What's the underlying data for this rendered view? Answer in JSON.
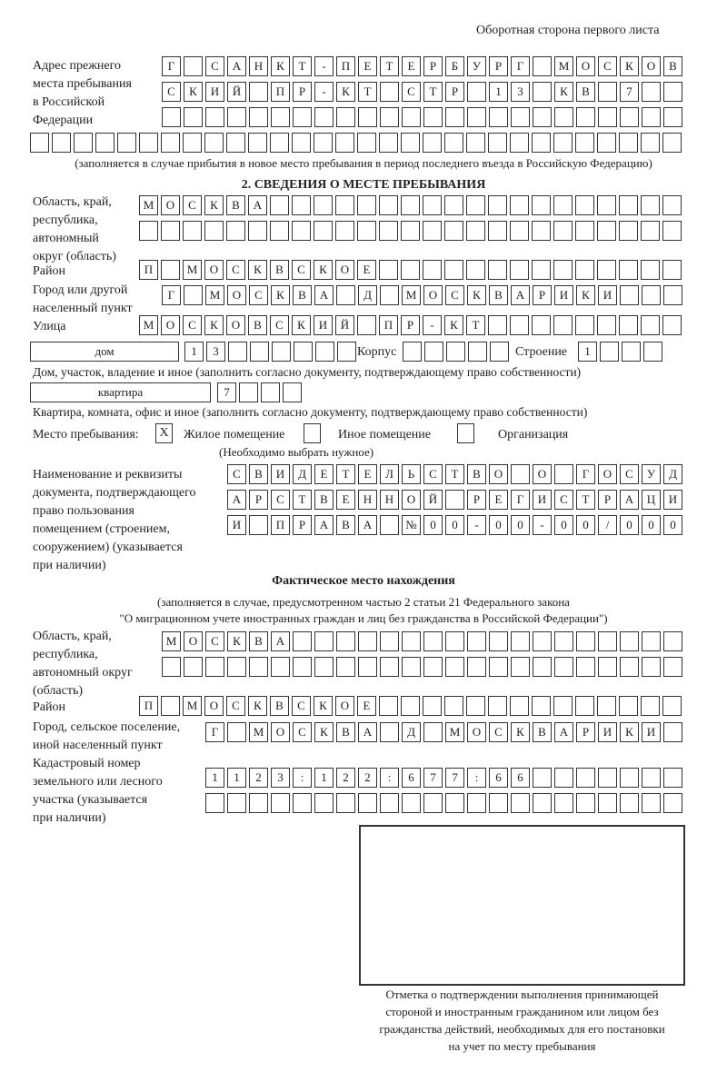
{
  "header": {
    "side_label": "Оборотная сторона первого листа"
  },
  "previous_address": {
    "label": [
      "Адрес прежнего",
      "места пребывания",
      "в Российской",
      "Федерации"
    ],
    "rows": [
      [
        "Г",
        "",
        "С",
        "А",
        "Н",
        "К",
        "Т",
        "-",
        "П",
        "Е",
        "Т",
        "Е",
        "Р",
        "Б",
        "У",
        "Р",
        "Г",
        "",
        "М",
        "О",
        "С",
        "К",
        "О",
        "В"
      ],
      [
        "С",
        "К",
        "И",
        "Й",
        "",
        "П",
        "Р",
        "-",
        "К",
        "Т",
        "",
        "С",
        "Т",
        "Р",
        "",
        "1",
        "3",
        "",
        "К",
        "В",
        "",
        "7",
        "",
        ""
      ],
      [
        "",
        "",
        "",
        "",
        "",
        "",
        "",
        "",
        "",
        "",
        "",
        "",
        "",
        "",
        "",
        "",
        "",
        "",
        "",
        "",
        "",
        "",
        "",
        ""
      ],
      [
        "",
        "",
        "",
        "",
        "",
        "",
        "",
        "",
        "",
        "",
        "",
        "",
        "",
        "",
        "",
        "",
        "",
        "",
        "",
        "",
        "",
        "",
        "",
        "",
        "",
        "",
        "",
        "",
        "",
        ""
      ]
    ],
    "note": "(заполняется в случае прибытия в новое место пребывания в период последнего въезда в Российскую Федерацию)"
  },
  "section2": {
    "title": "2. СВЕДЕНИЯ О МЕСТЕ ПРЕБЫВАНИЯ",
    "region_label": [
      "Область, край,",
      "республика,",
      "автономный",
      "округ (область)"
    ],
    "region_rows": [
      [
        "М",
        "О",
        "С",
        "К",
        "В",
        "А",
        "",
        "",
        "",
        "",
        "",
        "",
        "",
        "",
        "",
        "",
        "",
        "",
        "",
        "",
        "",
        "",
        "",
        "",
        ""
      ],
      [
        "",
        "",
        "",
        "",
        "",
        "",
        "",
        "",
        "",
        "",
        "",
        "",
        "",
        "",
        "",
        "",
        "",
        "",
        "",
        "",
        "",
        "",
        "",
        "",
        ""
      ]
    ],
    "district_label": "Район",
    "district_row": [
      "П",
      "",
      "М",
      "О",
      "С",
      "К",
      "В",
      "С",
      "К",
      "О",
      "Е",
      "",
      "",
      "",
      "",
      "",
      "",
      "",
      "",
      "",
      "",
      "",
      "",
      "",
      ""
    ],
    "city_label": [
      "Город или другой",
      "населенный пункт"
    ],
    "city_row": [
      "Г",
      "",
      "М",
      "О",
      "С",
      "К",
      "В",
      "А",
      "",
      "Д",
      "",
      "М",
      "О",
      "С",
      "К",
      "В",
      "А",
      "Р",
      "И",
      "К",
      "И",
      "",
      "",
      ""
    ],
    "street_label": "Улица",
    "street_row": [
      "М",
      "О",
      "С",
      "К",
      "О",
      "В",
      "С",
      "К",
      "И",
      "Й",
      "",
      "П",
      "Р",
      "-",
      "К",
      "Т",
      "",
      "",
      "",
      "",
      "",
      "",
      "",
      "",
      ""
    ],
    "house_type": "дом",
    "house_row": [
      "1",
      "3",
      "",
      "",
      "",
      "",
      "",
      ""
    ],
    "building_label": "Корпус",
    "building_row": [
      "",
      "",
      "",
      "",
      ""
    ],
    "structure_label": "Строение",
    "structure_row": [
      "1",
      "",
      "",
      ""
    ],
    "house_note": "Дом, участок, владение и иное (заполнить согласно документу, подтверждающему право собственности)",
    "flat_type": "квартира",
    "flat_row": [
      "7",
      "",
      "",
      ""
    ],
    "flat_note": "Квартира, комната, офис и иное (заполнить согласно документу, подтверждающему право собственности)",
    "stay_place_label": "Место пребывания:",
    "stay_options": [
      {
        "mark": "X",
        "label": "Жилое помещение"
      },
      {
        "mark": "",
        "label": "Иное помещение"
      },
      {
        "mark": "",
        "label": "Организация"
      }
    ],
    "stay_note": "(Необходимо выбрать нужное)",
    "document_label": [
      "Наименование и реквизиты",
      "документа, подтверждающего",
      "право пользования",
      "помещением (строением,",
      "сооружением) (указывается",
      "при наличии)"
    ],
    "document_rows": [
      [
        "С",
        "В",
        "И",
        "Д",
        "Е",
        "Т",
        "Е",
        "Л",
        "Ь",
        "С",
        "Т",
        "В",
        "О",
        "",
        "О",
        "",
        "Г",
        "О",
        "С",
        "У",
        "Д"
      ],
      [
        "А",
        "Р",
        "С",
        "Т",
        "В",
        "Е",
        "Н",
        "Н",
        "О",
        "Й",
        "",
        "Р",
        "Е",
        "Г",
        "И",
        "С",
        "Т",
        "Р",
        "А",
        "Ц",
        "И"
      ],
      [
        "И",
        "",
        "П",
        "Р",
        "А",
        "В",
        "А",
        "",
        "№",
        "0",
        "0",
        "-",
        "0",
        "0",
        "-",
        "0",
        "0",
        "/",
        "0",
        "0",
        "0"
      ]
    ]
  },
  "actual_location": {
    "title": "Фактическое место нахождения",
    "note": [
      "(заполняется в случае, предусмотренном частью 2 статьи 21 Федерального закона",
      "\"О миграционном учете иностранных граждан и лиц без гражданства в Российской Федерации\")"
    ],
    "region_label": [
      "Область, край,",
      "республика,",
      "автономный округ",
      "(область)"
    ],
    "region_rows": [
      [
        "М",
        "О",
        "С",
        "К",
        "В",
        "А",
        "",
        "",
        "",
        "",
        "",
        "",
        "",
        "",
        "",
        "",
        "",
        "",
        "",
        "",
        "",
        "",
        "",
        ""
      ],
      [
        "",
        "",
        "",
        "",
        "",
        "",
        "",
        "",
        "",
        "",
        "",
        "",
        "",
        "",
        "",
        "",
        "",
        "",
        "",
        "",
        "",
        "",
        "",
        ""
      ]
    ],
    "district_label": "Район",
    "district_row": [
      "П",
      "",
      "М",
      "О",
      "С",
      "К",
      "В",
      "С",
      "К",
      "О",
      "Е",
      "",
      "",
      "",
      "",
      "",
      "",
      "",
      "",
      "",
      "",
      "",
      "",
      "",
      ""
    ],
    "city_label": [
      "Город, сельское поселение,",
      "иной населенный пункт"
    ],
    "city_row": [
      "Г",
      "",
      "М",
      "О",
      "С",
      "К",
      "В",
      "А",
      "",
      "Д",
      "",
      "М",
      "О",
      "С",
      "К",
      "В",
      "А",
      "Р",
      "И",
      "К",
      "И",
      ""
    ],
    "cadastre_label": [
      "Кадастровый номер",
      "земельного или лесного",
      "участка (указывается",
      "при наличии)"
    ],
    "cadastre_rows": [
      [
        "1",
        "1",
        "2",
        "3",
        ":",
        "1",
        "2",
        "2",
        ":",
        "6",
        "7",
        "7",
        ":",
        "6",
        "6",
        "",
        "",
        "",
        "",
        "",
        "",
        ""
      ],
      [
        "",
        "",
        "",
        "",
        "",
        "",
        "",
        "",
        "",
        "",
        "",
        "",
        "",
        "",
        "",
        "",
        "",
        "",
        "",
        "",
        "",
        ""
      ]
    ]
  },
  "confirmation": {
    "caption": [
      "Отметка о подтверждении выполнения принимающей",
      "стороной и иностранным гражданином или лицом без",
      "гражданства действий, необходимых для его постановки",
      "на учет по месту пребывания"
    ]
  }
}
